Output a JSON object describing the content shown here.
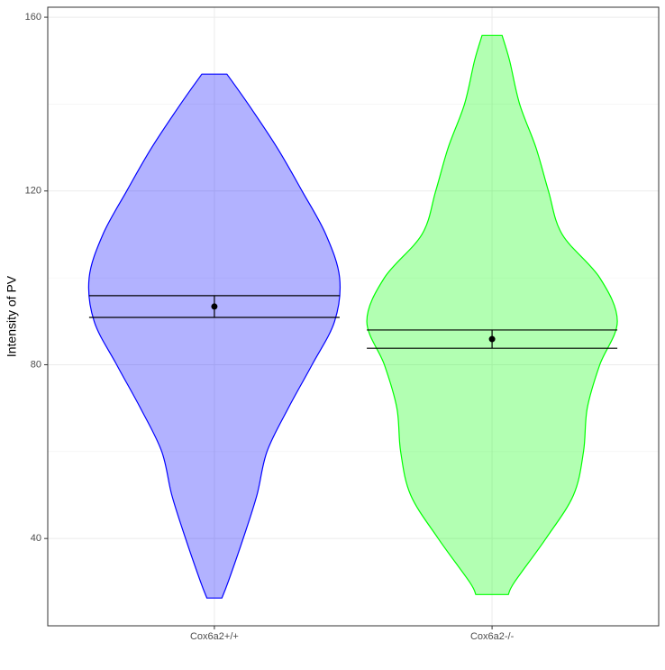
{
  "chart_data": {
    "type": "violin",
    "y_label": "Intensity of PV",
    "categories": [
      "Cox6a2+/+",
      "Cox6a2-/-"
    ],
    "series": [
      {
        "color": "#0000ff",
        "y": [
          26.3,
          30,
          40,
          50,
          60,
          70,
          80,
          90,
          100,
          110,
          120,
          130,
          140,
          146.9
        ],
        "width": [
          0.06,
          0.11,
          0.23,
          0.34,
          0.42,
          0.59,
          0.78,
          0.96,
          1.0,
          0.89,
          0.7,
          0.5,
          0.27,
          0.1
        ],
        "mean": 93.4,
        "lower": 90.9,
        "upper": 95.9
      },
      {
        "color": "#00ff00",
        "y": [
          27.1,
          30,
          40,
          50,
          60,
          70,
          80,
          90,
          100,
          110,
          120,
          130,
          140,
          150,
          155.8
        ],
        "width": [
          0.13,
          0.18,
          0.43,
          0.65,
          0.73,
          0.76,
          0.86,
          1.0,
          0.86,
          0.56,
          0.45,
          0.35,
          0.22,
          0.14,
          0.08
        ],
        "mean": 85.9,
        "lower": 83.8,
        "upper": 88.0
      }
    ],
    "ylim": [
      19.9,
      162.3
    ],
    "yticks": [
      40,
      80,
      120,
      160
    ],
    "grid": true
  }
}
